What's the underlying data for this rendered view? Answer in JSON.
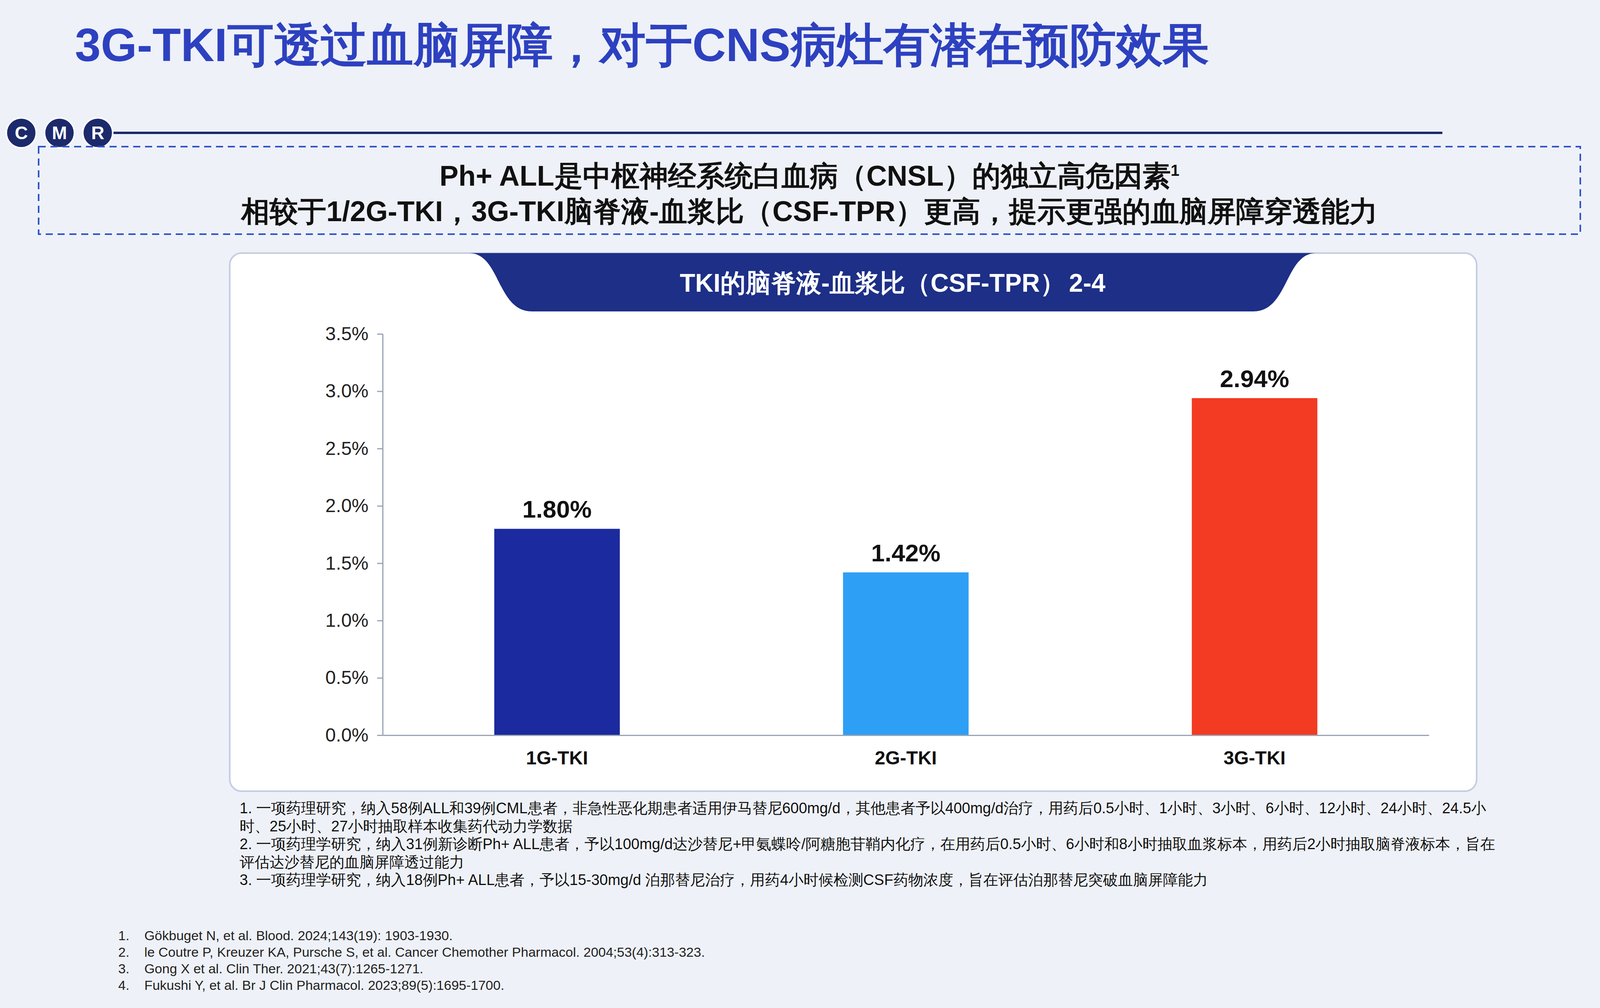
{
  "title": "3G-TKI可透过血脑屏障，对于CNS病灶有潜在预防效果",
  "logo": [
    "C",
    "M",
    "R"
  ],
  "highlights": [
    {
      "text": "Ph+ ALL是中枢神经系统白血病（CNSL）的独立高危因素",
      "superscript": "1"
    },
    {
      "text": "相较于1/2G-TKI，3G-TKI脑脊液-血浆比（CSF-TPR）更高，提示更强的血脑屏障穿透能力"
    }
  ],
  "chart_data": {
    "type": "bar",
    "title": "TKI的脑脊液-血浆比（CSF-TPR）",
    "title_superscript": "2-4",
    "categories": [
      "1G-TKI",
      "2G-TKI",
      "3G-TKI"
    ],
    "values": [
      1.8,
      1.42,
      2.94
    ],
    "value_labels": [
      "1.80%",
      "1.42%",
      "2.94%"
    ],
    "colors": [
      "#1b2a9e",
      "#2d9ff5",
      "#f23b22"
    ],
    "ylim": [
      0,
      3.5
    ],
    "yticks": [
      {
        "value": 0,
        "label": "0.0%"
      },
      {
        "value": 0.5,
        "label": "0.5%"
      },
      {
        "value": 1,
        "label": "1.0%"
      },
      {
        "value": 1.5,
        "label": "1.5%"
      },
      {
        "value": 2,
        "label": "2.0%"
      },
      {
        "value": 2.5,
        "label": "2.5%"
      },
      {
        "value": 3,
        "label": "3.0%"
      },
      {
        "value": 3.5,
        "label": "3.5%"
      }
    ],
    "grid": false,
    "data_labels": true
  },
  "footnotes": [
    "1. 一项药理研究，纳入58例ALL和39例CML患者，非急性恶化期患者适用伊马替尼600mg/d，其他患者予以400mg/d治疗，用药后0.5小时、1小时、3小时、6小时、12小时、24小时、24.5小时、25小时、27小时抽取样本收集药代动力学数据",
    "2. 一项药理学研究，纳入31例新诊断Ph+ ALL患者，予以100mg/d达沙替尼+甲氨蝶呤/阿糖胞苷鞘内化疗，在用药后0.5小时、6小时和8小时抽取血浆标本，用药后2小时抽取脑脊液标本，旨在评估达沙替尼的血脑屏障透过能力",
    "3. 一项药理学研究，纳入18例Ph+ ALL患者，予以15-30mg/d 泊那替尼治疗，用药4小时候检测CSF药物浓度，旨在评估泊那替尼突破血脑屏障能力"
  ],
  "references": [
    "1.    Gökbuget N, et al. Blood. 2024;143(19): 1903-1930.",
    "2.    le Coutre P, Kreuzer KA, Pursche S, et al. Cancer Chemother Pharmacol. 2004;53(4):313-323.",
    "3.    Gong X et al. Clin Ther. 2021;43(7):1265-1271.",
    "4.    Fukushi Y, et al. Br J Clin Pharmacol. 2023;89(5):1695-1700."
  ]
}
